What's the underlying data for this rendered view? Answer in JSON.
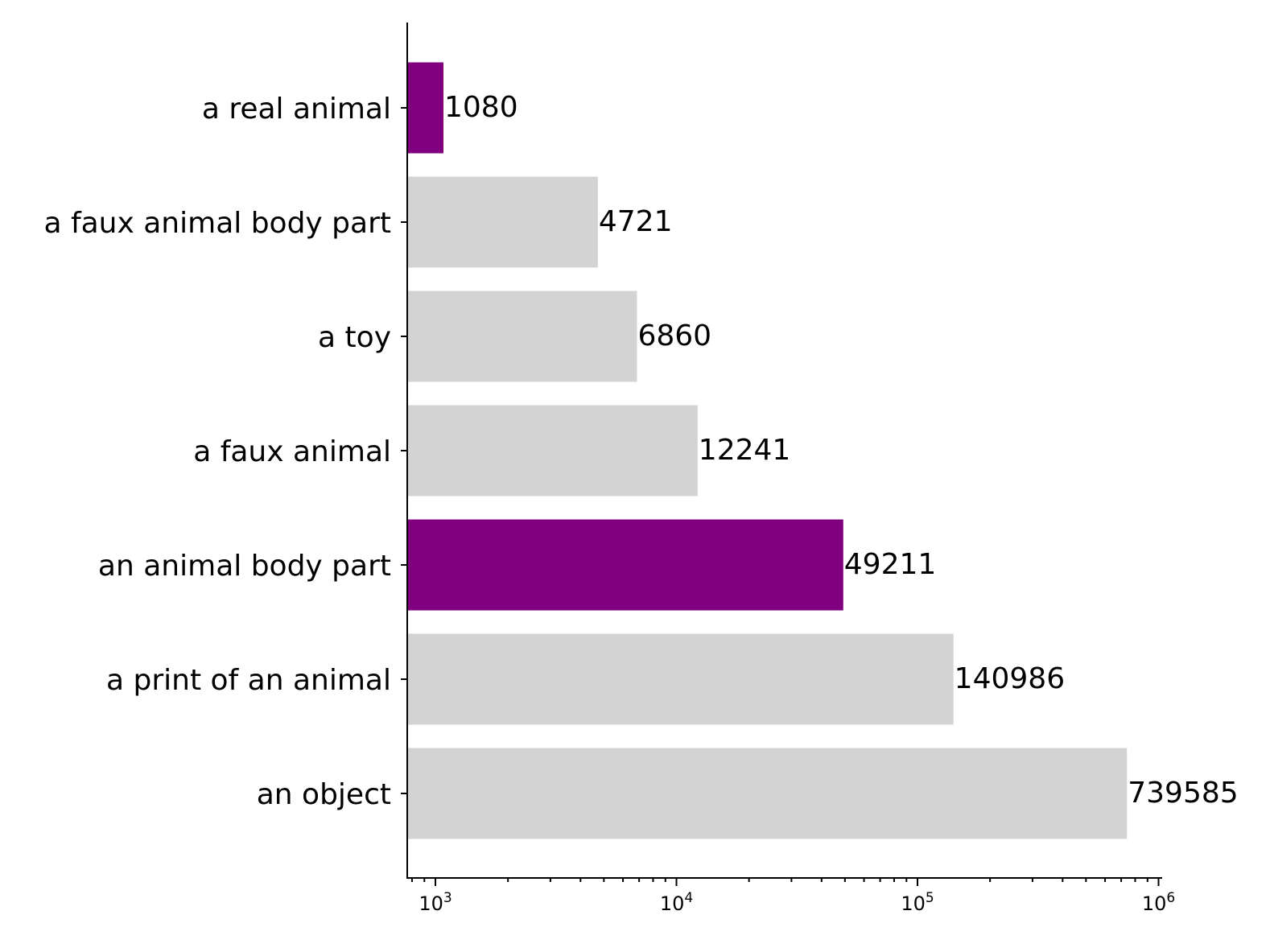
{
  "chart_data": {
    "type": "bar",
    "orientation": "horizontal",
    "x_scale": "log",
    "xlim": [
      800,
      1000000
    ],
    "title": "",
    "xlabel": "",
    "ylabel": "",
    "grid": false,
    "legend": "none",
    "categories": [
      "a real animal",
      "a faux animal body part",
      "a toy",
      "a faux animal",
      "an animal body part",
      "a print of an animal",
      "an object"
    ],
    "values": [
      1080,
      4721,
      6860,
      12241,
      49211,
      140986,
      739585
    ],
    "value_labels": [
      "1080",
      "4721",
      "6860",
      "12241",
      "49211",
      "140986",
      "739585"
    ],
    "bar_colors": [
      "#800080",
      "#d3d3d3",
      "#d3d3d3",
      "#d3d3d3",
      "#800080",
      "#d3d3d3",
      "#d3d3d3"
    ],
    "x_ticks": [
      {
        "value": 1000,
        "base": "10",
        "exp": "3"
      },
      {
        "value": 10000,
        "base": "10",
        "exp": "4"
      },
      {
        "value": 100000,
        "base": "10",
        "exp": "5"
      },
      {
        "value": 1000000,
        "base": "10",
        "exp": "6"
      }
    ]
  }
}
